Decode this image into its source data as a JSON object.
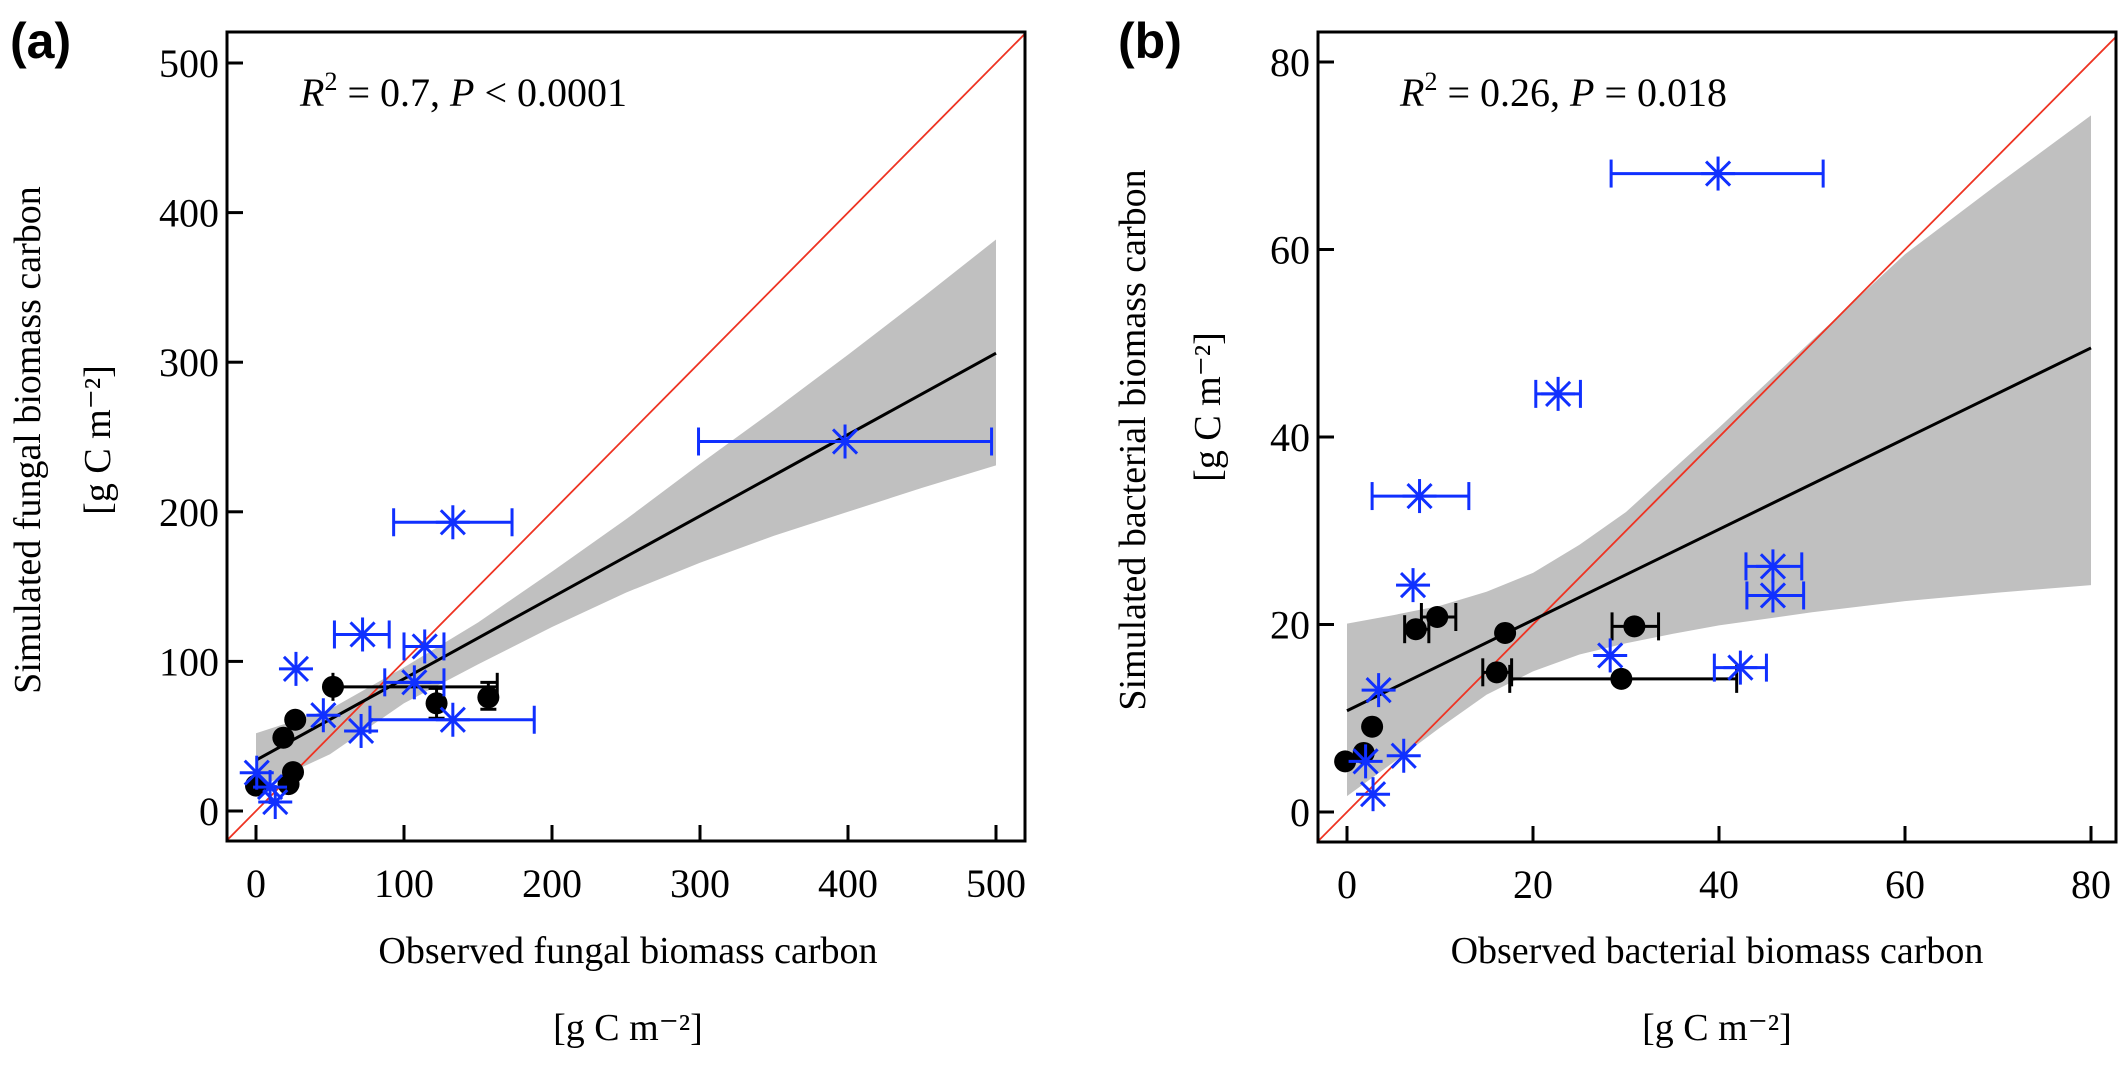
{
  "figure": {
    "colors": {
      "observed_fit": "#000000",
      "one_to_one": "#ee3322",
      "confidence_band": "#c0c0c0",
      "black_points": "#000000",
      "blue_points": "#1030ff",
      "axis": "#000000"
    }
  },
  "chart_data": [
    {
      "panel": "(a)",
      "type": "scatter",
      "title": "",
      "xlabel": "Observed fungal biomass carbon",
      "xlabel_unit": "[g C m⁻²]",
      "ylabel": "Simulated fungal biomass carbon",
      "ylabel_unit": "[g C m⁻²]",
      "xlim": [
        -20,
        520
      ],
      "ylim": [
        -20,
        520
      ],
      "xticks": [
        0,
        100,
        200,
        300,
        400,
        500
      ],
      "yticks": [
        0,
        100,
        200,
        300,
        400,
        500
      ],
      "xtick_labels": [
        "0",
        "100",
        "200",
        "300",
        "400",
        "500"
      ],
      "ytick_labels": [
        "0",
        "100",
        "200",
        "300",
        "400",
        "500"
      ],
      "grid": false,
      "annotation": {
        "r2_label": "R",
        "r2_sup": "2",
        "r2_text": " = 0.7,  ",
        "p_label": "P",
        "p_text": " < 0.0001"
      },
      "one_to_one_line": true,
      "regression": {
        "x": [
          0,
          500
        ],
        "y": [
          34,
          306
        ]
      },
      "confidence_band": {
        "x": [
          0,
          50,
          100,
          150,
          200,
          250,
          300,
          350,
          400,
          450,
          500
        ],
        "upper": [
          52,
          68,
          96,
          126,
          160,
          195,
          232,
          268,
          305,
          343,
          382
        ],
        "lower": [
          15,
          38,
          72,
          98,
          123,
          146,
          166,
          184,
          200,
          216,
          231
        ]
      },
      "series": [
        {
          "name": "black-circles",
          "marker": "circle",
          "points": [
            {
              "x": 0,
              "y": 17
            },
            {
              "x": 22,
              "y": 18
            },
            {
              "x": 25,
              "y": 26
            },
            {
              "x": 18.5,
              "y": 49
            },
            {
              "x": 26.5,
              "y": 61
            },
            {
              "x": 52,
              "y": 83,
              "xerr": [
                52,
                163
              ]
            },
            {
              "x": 122,
              "y": 72,
              "yerr": [
                62,
                82
              ]
            },
            {
              "x": 157,
              "y": 76,
              "yerr": [
                68,
                86
              ]
            }
          ]
        },
        {
          "name": "blue-asterisks",
          "marker": "asterisk",
          "points": [
            {
              "x": 0.5,
              "y": 25.6
            },
            {
              "x": 9.5,
              "y": 16
            },
            {
              "x": 13,
              "y": 6
            },
            {
              "x": 27,
              "y": 95
            },
            {
              "x": 45.5,
              "y": 64
            },
            {
              "x": 71,
              "y": 53.5
            },
            {
              "x": 72,
              "y": 118,
              "xerr": [
                53,
                90
              ]
            },
            {
              "x": 107,
              "y": 86,
              "xerr": [
                87,
                127
              ]
            },
            {
              "x": 114,
              "y": 110,
              "xerr": [
                100,
                127
              ]
            },
            {
              "x": 133,
              "y": 193,
              "xerr": [
                93,
                173
              ]
            },
            {
              "x": 133,
              "y": 61,
              "xerr": [
                77,
                188
              ]
            },
            {
              "x": 398,
              "y": 247,
              "xerr": [
                299,
                497
              ]
            }
          ]
        }
      ]
    },
    {
      "panel": "(b)",
      "type": "scatter",
      "title": "",
      "xlabel": "Observed bacterial biomass carbon",
      "xlabel_unit": "[g C m⁻²]",
      "ylabel": "Simulated bacterial biomass carbon",
      "ylabel_unit": "[g C m⁻²]",
      "xlim": [
        -3,
        83
      ],
      "ylim": [
        -3,
        83
      ],
      "xticks": [
        0,
        20,
        40,
        60,
        80
      ],
      "yticks": [
        0,
        20,
        40,
        60,
        80
      ],
      "xtick_labels": [
        "0",
        "20",
        "40",
        "60",
        "80"
      ],
      "ytick_labels": [
        "0",
        "20",
        "40",
        "60",
        "80"
      ],
      "grid": false,
      "annotation": {
        "r2_label": "R",
        "r2_sup": "2",
        "r2_text": " = 0.26,  ",
        "p_label": "P",
        "p_text": " = 0.018"
      },
      "one_to_one_line": true,
      "regression": {
        "x": [
          0,
          80
        ],
        "y": [
          10.8,
          49.5
        ]
      },
      "confidence_band": {
        "x": [
          0,
          5,
          10,
          15,
          20,
          25,
          30,
          35,
          40,
          50,
          60,
          70,
          80
        ],
        "upper": [
          20.1,
          21.0,
          22.0,
          23.5,
          25.5,
          28.5,
          32.0,
          36.5,
          41.0,
          50.3,
          59.5,
          67.0,
          74.3
        ],
        "lower": [
          1.7,
          5.3,
          9.0,
          12.5,
          15.0,
          16.8,
          18.0,
          19.0,
          19.9,
          21.3,
          22.5,
          23.4,
          24.2
        ]
      },
      "series": [
        {
          "name": "black-circles",
          "marker": "circle",
          "points": [
            {
              "x": -0.2,
              "y": 5.4
            },
            {
              "x": 1.8,
              "y": 6.3
            },
            {
              "x": 2.7,
              "y": 9.1
            },
            {
              "x": 7.4,
              "y": 19.5,
              "xerr": [
                6.2,
                8.8
              ]
            },
            {
              "x": 9.7,
              "y": 20.8,
              "xerr": [
                8.0,
                11.7
              ]
            },
            {
              "x": 16.1,
              "y": 14.9,
              "xerr": [
                14.6,
                17.7
              ]
            },
            {
              "x": 17.0,
              "y": 19.1
            },
            {
              "x": 29.5,
              "y": 14.2,
              "xerr": [
                17.5,
                41.9
              ]
            },
            {
              "x": 30.9,
              "y": 19.8,
              "xerr": [
                28.5,
                33.5
              ]
            }
          ]
        },
        {
          "name": "blue-asterisks",
          "marker": "asterisk",
          "points": [
            {
              "x": 2.0,
              "y": 5.4
            },
            {
              "x": 2.8,
              "y": 1.9
            },
            {
              "x": 3.4,
              "y": 13.0
            },
            {
              "x": 6.1,
              "y": 6.0
            },
            {
              "x": 7.1,
              "y": 24.2
            },
            {
              "x": 7.8,
              "y": 33.7,
              "xerr": [
                2.7,
                13.1
              ]
            },
            {
              "x": 22.7,
              "y": 44.6,
              "xerr": [
                20.3,
                25.1
              ]
            },
            {
              "x": 28.3,
              "y": 16.7
            },
            {
              "x": 39.9,
              "y": 68.1,
              "xerr": [
                28.4,
                51.2
              ]
            },
            {
              "x": 42.3,
              "y": 15.4,
              "xerr": [
                39.5,
                45.1
              ]
            },
            {
              "x": 45.8,
              "y": 26.2,
              "xerr": [
                42.9,
                48.9
              ]
            },
            {
              "x": 45.8,
              "y": 23.1,
              "xerr": [
                43.0,
                49.1
              ]
            }
          ]
        }
      ]
    }
  ]
}
